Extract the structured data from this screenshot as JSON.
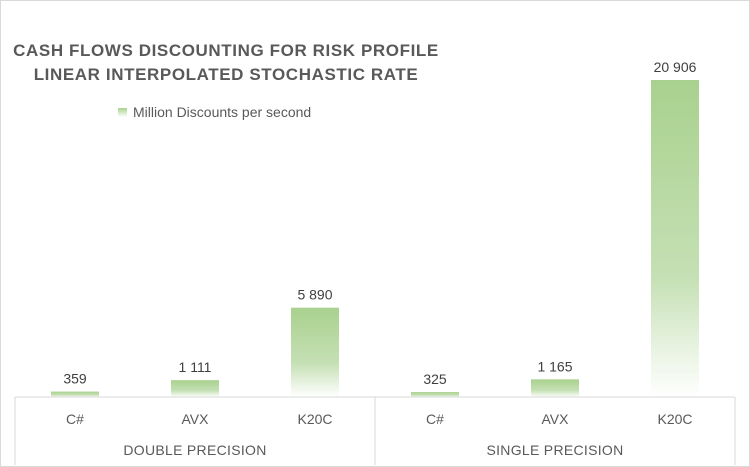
{
  "chart_data": {
    "type": "bar",
    "title": [
      "CASH FLOWS DISCOUNTING FOR RISK PROFILE",
      "LINEAR INTERPOLATED STOCHASTIC RATE"
    ],
    "groups": [
      {
        "label": "DOUBLE PRECISION",
        "categories": [
          "C#",
          "AVX",
          "K20C"
        ]
      },
      {
        "label": "SINGLE PRECISION",
        "categories": [
          "C#",
          "AVX",
          "K20C"
        ]
      }
    ],
    "series": [
      {
        "name": "Million Discounts per second",
        "values": [
          359,
          1111,
          5890,
          325,
          1165,
          20906
        ],
        "data_labels": [
          "359",
          "1 111",
          "5 890",
          "325",
          "1 165",
          "20 906"
        ]
      }
    ],
    "ylim": [
      0,
      21600
    ],
    "legend_position": "top-left",
    "grid": false,
    "colors": {
      "bar": "#a9d18e",
      "bar_fade": "#ffffff",
      "axis": "#d9d9d9",
      "text": "#595959"
    }
  }
}
